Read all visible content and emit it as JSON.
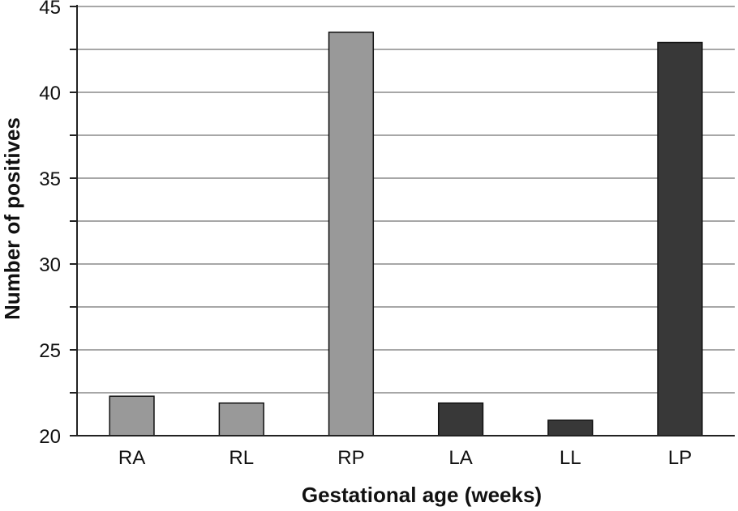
{
  "chart_data": {
    "type": "bar",
    "title": "",
    "xlabel": "Gestational age (weeks)",
    "ylabel": "Number of positives",
    "categories": [
      "RA",
      "RL",
      "RP",
      "LA",
      "LL",
      "LP"
    ],
    "values": [
      22.3,
      21.9,
      43.5,
      21.9,
      20.9,
      42.9
    ],
    "colors": [
      "#999999",
      "#999999",
      "#999999",
      "#383838",
      "#383838",
      "#383838"
    ],
    "ylim": [
      20,
      45
    ],
    "yticks": [
      20,
      25,
      30,
      35,
      40,
      45
    ],
    "minor_step": 2.5,
    "grid": true,
    "legend": "none"
  }
}
